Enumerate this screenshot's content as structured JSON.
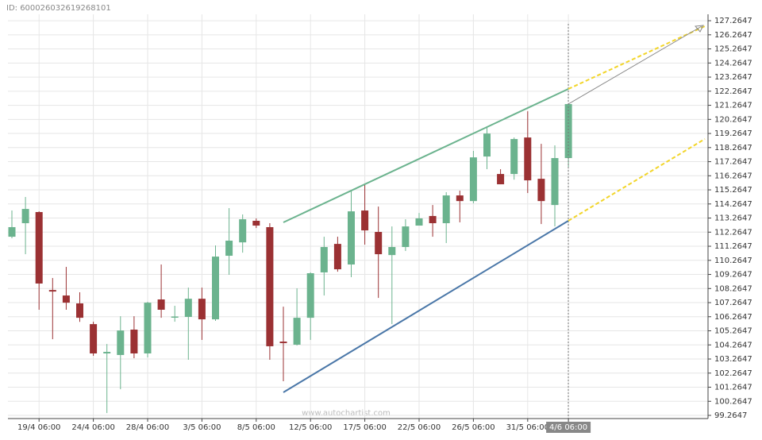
{
  "header": {
    "id": "ID: 600026032619268101"
  },
  "chart_data": {
    "type": "candlestick",
    "watermark": "www.autochartist.com",
    "categories": [
      null,
      null,
      "19/4 06:00",
      null,
      null,
      null,
      "24/4 06:00",
      null,
      null,
      null,
      "28/4 06:00",
      null,
      null,
      null,
      "3/5 06:00",
      null,
      null,
      null,
      "8/5 06:00",
      null,
      null,
      null,
      "12/5 06:00",
      null,
      null,
      null,
      "17/5 06:00",
      null,
      null,
      null,
      "22/5 06:00",
      null,
      null,
      null,
      "26/5 06:00",
      null,
      null,
      null,
      "31/5 06:00",
      null,
      null,
      "4/6 06:00"
    ],
    "open": [
      111.94,
      112.9,
      113.69,
      108.16,
      107.77,
      107.21,
      105.74,
      103.66,
      103.55,
      105.35,
      103.66,
      107.49,
      106.22,
      106.25,
      107.54,
      106.08,
      110.59,
      111.54,
      113.07,
      112.62,
      104.5,
      104.28,
      106.19,
      109.41,
      111.43,
      109.97,
      113.8,
      112.28,
      110.64,
      111.21,
      112.73,
      113.41,
      112.9,
      114.87,
      114.47,
      117.63,
      116.39,
      116.39,
      118.98,
      116.05,
      114.19,
      117.52
    ],
    "high": [
      113.8,
      114.76,
      113.74,
      109.01,
      109.8,
      108.0,
      105.91,
      104.33,
      106.3,
      106.3,
      107.32,
      109.97,
      107.04,
      108.33,
      108.33,
      111.32,
      113.97,
      113.52,
      113.24,
      112.9,
      106.98,
      108.28,
      109.41,
      111.94,
      111.94,
      115.21,
      115.71,
      114.08,
      112.67,
      113.18,
      113.63,
      114.19,
      115.1,
      115.21,
      118.03,
      119.71,
      116.73,
      118.98,
      120.84,
      118.53,
      118.42,
      121.35
    ],
    "low": [
      111.83,
      110.7,
      106.76,
      104.67,
      106.76,
      105.9,
      103.49,
      99.43,
      101.12,
      103.32,
      103.38,
      106.19,
      105.91,
      103.21,
      104.62,
      105.97,
      109.24,
      110.81,
      112.56,
      103.21,
      101.69,
      104.22,
      104.62,
      107.77,
      109.46,
      109.07,
      111.38,
      107.6,
      105.74,
      110.93,
      112.73,
      111.94,
      111.49,
      112.96,
      114.31,
      116.73,
      115.66,
      115.99,
      115.04,
      112.84,
      112.67,
      116.9
    ],
    "close": [
      112.62,
      113.91,
      108.62,
      108.05,
      107.26,
      106.19,
      103.66,
      103.77,
      105.29,
      103.66,
      107.26,
      106.76,
      106.28,
      107.54,
      106.08,
      110.53,
      111.66,
      113.18,
      112.73,
      104.17,
      104.39,
      106.19,
      109.35,
      111.21,
      109.63,
      113.74,
      112.39,
      110.7,
      111.21,
      112.67,
      113.24,
      112.9,
      114.87,
      114.47,
      117.57,
      119.26,
      115.66,
      118.87,
      115.94,
      114.47,
      117.52,
      121.35
    ],
    "up_color": "#6bb38e",
    "down_color": "#9b3133",
    "ylim": [
      99.04,
      127.72
    ],
    "yticks": [
      99.2647,
      100.2647,
      101.2647,
      102.2647,
      103.2647,
      104.2647,
      105.2647,
      106.2647,
      107.2647,
      108.2647,
      109.2647,
      110.2647,
      111.2647,
      112.2647,
      113.2647,
      114.2647,
      115.2647,
      116.2647,
      117.2647,
      118.2647,
      119.2647,
      120.2647,
      121.2647,
      122.2647,
      123.2647,
      124.2647,
      125.2647,
      126.2647,
      127.2647
    ],
    "grid": true
  }
}
